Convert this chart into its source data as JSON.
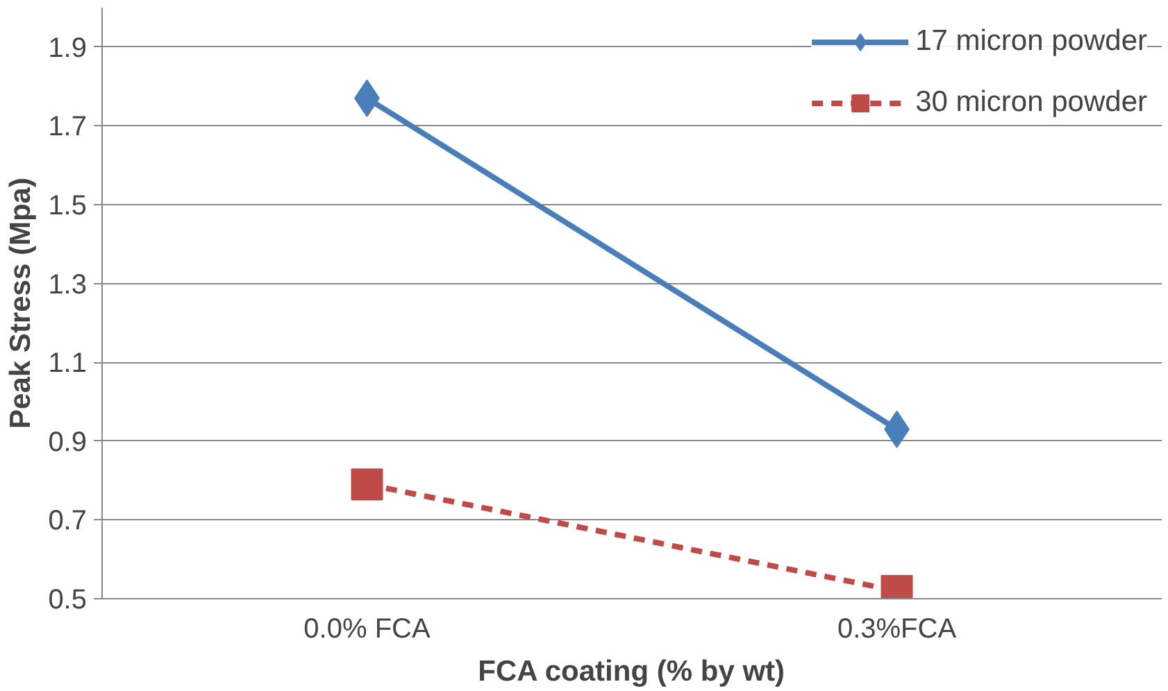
{
  "chart_data": {
    "type": "line",
    "xlabel": "FCA coating (% by wt)",
    "ylabel": "Peak Stress (Mpa)",
    "categories": [
      "0.0% FCA",
      "0.3%FCA"
    ],
    "series": [
      {
        "name": "17 micron powder",
        "color": "#4a7ebb",
        "values": [
          1.77,
          0.93
        ],
        "marker": "diamond",
        "line_style": "solid"
      },
      {
        "name": "30 micron powder",
        "color": "#be4b48",
        "values": [
          0.79,
          0.52
        ],
        "marker": "square",
        "line_style": "dashed"
      }
    ],
    "ylim": [
      0.5,
      2.0
    ],
    "yticks": [
      0.5,
      0.7,
      0.9,
      1.1,
      1.3,
      1.5,
      1.7,
      1.9
    ],
    "grid": "y",
    "legend": "top right"
  }
}
